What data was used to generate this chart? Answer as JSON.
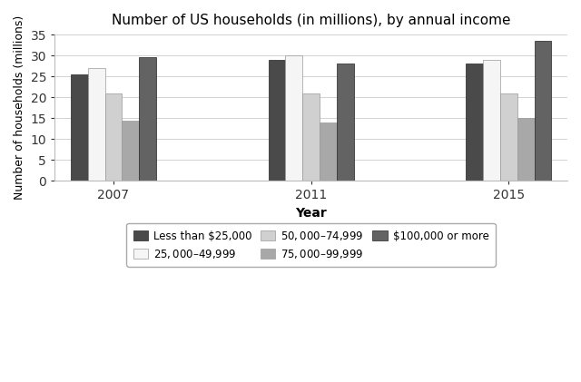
{
  "title": "Number of US households (in millions), by annual income",
  "xlabel": "Year",
  "ylabel": "Number of households (millions)",
  "years": [
    "2007",
    "2011",
    "2015"
  ],
  "categories": [
    "Less than $25,000",
    "$25,000–$49,999",
    "$50,000–$74,999",
    "$75,000–$99,999",
    "$100,000 or more"
  ],
  "values": [
    [
      25.5,
      29.0,
      28.0
    ],
    [
      27.0,
      30.0,
      29.0
    ],
    [
      21.0,
      21.0,
      21.0
    ],
    [
      14.5,
      14.0,
      15.0
    ],
    [
      29.5,
      28.0,
      33.5
    ]
  ],
  "colors": [
    "#4a4a4a",
    "#f5f5f5",
    "#d0d0d0",
    "#a8a8a8",
    "#636363"
  ],
  "edgecolors": [
    "#222222",
    "#999999",
    "#999999",
    "#999999",
    "#222222"
  ],
  "ylim": [
    0,
    35
  ],
  "yticks": [
    0,
    5,
    10,
    15,
    20,
    25,
    30,
    35
  ],
  "bar_width": 0.16,
  "group_centers": [
    1.0,
    2.85,
    4.7
  ],
  "legend_ncol": 3,
  "background_color": "#ffffff"
}
